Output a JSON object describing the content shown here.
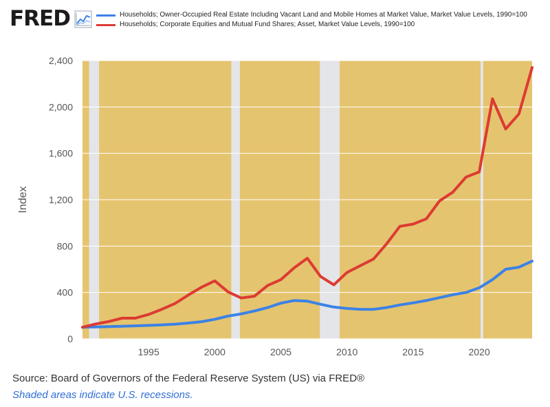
{
  "logo": {
    "text": "FRED",
    "icon": "chart-line-icon"
  },
  "legend": {
    "items": [
      {
        "label": "Households; Owner-Occupied Real Estate Including Vacant Land and Mobile Homes at Market Value, Market Value Levels, 1990=100",
        "color": "#3b82e6"
      },
      {
        "label": "Households; Corporate Equities and Mutual Fund Shares; Asset, Market Value Levels, 1990=100",
        "color": "#dc3b32"
      }
    ]
  },
  "footer": {
    "source": "Source: Board of Governors of the Federal Reserve System (US) via FRED®",
    "note": "Shaded areas indicate U.S. recessions."
  },
  "colors": {
    "plot_background": "#e5c46f",
    "recession_band": "#e4e5e9",
    "grid": "#ffffff",
    "axis_text": "#555555"
  },
  "chart_data": {
    "type": "line",
    "ylabel": "Index",
    "xlabel": "",
    "xlim": [
      1990.0,
      2024.0
    ],
    "ylim": [
      0,
      2400
    ],
    "yticks": [
      0,
      400,
      800,
      1200,
      1600,
      2000,
      2400
    ],
    "ytick_labels": [
      "0",
      "400",
      "800",
      "1,200",
      "1,600",
      "2,000",
      "2,400"
    ],
    "xticks": [
      1995,
      2000,
      2005,
      2010,
      2015,
      2020
    ],
    "xtick_labels": [
      "1995",
      "2000",
      "2005",
      "2010",
      "2015",
      "2020"
    ],
    "grid": "horizontal",
    "recessions": [
      [
        1990.5,
        1991.25
      ],
      [
        2001.25,
        2001.9
      ],
      [
        2007.95,
        2009.45
      ],
      [
        2020.1,
        2020.3
      ]
    ],
    "x": [
      1990,
      1991,
      1992,
      1993,
      1994,
      1995,
      1996,
      1997,
      1998,
      1999,
      2000,
      2001,
      2002,
      2003,
      2004,
      2005,
      2006,
      2007,
      2008,
      2009,
      2010,
      2011,
      2012,
      2013,
      2014,
      2015,
      2016,
      2017,
      2018,
      2019,
      2020,
      2021,
      2022,
      2023,
      2024
    ],
    "series": [
      {
        "values": [
          100,
          102,
          105,
          108,
          112,
          116,
          120,
          126,
          136,
          148,
          168,
          196,
          215,
          240,
          270,
          308,
          330,
          325,
          298,
          274,
          262,
          255,
          254,
          270,
          292,
          310,
          330,
          355,
          380,
          400,
          440,
          510,
          600,
          618,
          670
        ]
      },
      {
        "values": [
          100,
          128,
          150,
          178,
          178,
          210,
          255,
          305,
          378,
          445,
          500,
          405,
          352,
          368,
          460,
          510,
          612,
          695,
          538,
          466,
          572,
          630,
          688,
          820,
          970,
          990,
          1035,
          1190,
          1265,
          1395,
          1440,
          2070,
          1810,
          1940,
          2340
        ]
      }
    ]
  }
}
